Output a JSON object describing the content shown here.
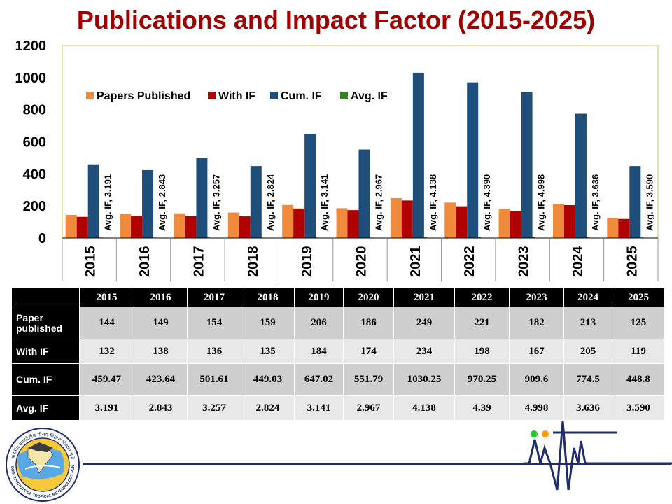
{
  "title": "Publications and Impact Factor (2015-2025)",
  "chart_data": {
    "type": "bar",
    "categories": [
      "2015",
      "2016",
      "2017",
      "2018",
      "2019",
      "2020",
      "2021",
      "2022",
      "2023",
      "2024",
      "2025"
    ],
    "series": [
      {
        "name": "Papers Published",
        "color": "#f08a3c",
        "values": [
          144,
          149,
          154,
          159,
          206,
          186,
          249,
          221,
          182,
          213,
          125
        ]
      },
      {
        "name": "With IF",
        "color": "#b00000",
        "values": [
          132,
          138,
          136,
          135,
          184,
          174,
          234,
          198,
          167,
          205,
          119
        ]
      },
      {
        "name": "Cum. IF",
        "color": "#1f4e7a",
        "values": [
          459.47,
          423.64,
          501.61,
          449.03,
          647.02,
          551.79,
          1030.25,
          970.25,
          909.6,
          774.5,
          448.8
        ]
      },
      {
        "name": "Avg. IF",
        "color": "#3a7d2a",
        "values": [
          3.191,
          2.843,
          3.257,
          2.824,
          3.141,
          2.967,
          4.138,
          4.39,
          4.998,
          3.636,
          3.59
        ]
      }
    ],
    "data_labels": [
      "Avg. IF, 3.191",
      "Avg. IF, 2.843",
      "Avg. IF, 3.257",
      "Avg. IF, 2.824",
      "Avg. IF, 3.141",
      "Avg. IF, 2.967",
      "Avg. IF, 4.138",
      "Avg. IF, 4.390",
      "Avg. IF, 4.998",
      "Avg. IF, 3.636",
      "Avg. IF, 3.590"
    ],
    "yticks": [
      "0",
      "200",
      "400",
      "600",
      "800",
      "1000",
      "1200"
    ],
    "ylim": [
      0,
      1200
    ],
    "grid": false,
    "legend_position": "top-left"
  },
  "table": {
    "years": [
      "2015",
      "2016",
      "2017",
      "2018",
      "2019",
      "2020",
      "2021",
      "2022",
      "2023",
      "2024",
      "2025"
    ],
    "rows": [
      {
        "label": "Paper published",
        "values": [
          "144",
          "149",
          "154",
          "159",
          "206",
          "186",
          "249",
          "221",
          "182",
          "213",
          "125"
        ]
      },
      {
        "label": "With IF",
        "values": [
          "132",
          "138",
          "136",
          "135",
          "184",
          "174",
          "234",
          "198",
          "167",
          "205",
          "119"
        ]
      },
      {
        "label": "Cum. IF",
        "values": [
          "459.47",
          "423.64",
          "501.61",
          "449.03",
          "647.02",
          "551.79",
          "1030.25",
          "970.25",
          "909.6",
          "774.5",
          "448.8"
        ]
      },
      {
        "label": "Avg. IF",
        "values": [
          "3.191",
          "2.843",
          "3.257",
          "2.824",
          "3.141",
          "2.967",
          "4.138",
          "4.39",
          "4.998",
          "3.636",
          "3.590"
        ]
      }
    ]
  },
  "logo": {
    "top_text": "भारतीय उष्णदेशीय मौसम विज्ञान संस्थान पुणे",
    "bottom_text": "INDIAN INSTITUTE OF TROPICAL METEOROLOGY PUNE"
  },
  "colors": {
    "title": "#a00000",
    "accent_line": "#1f2d6a",
    "dot_green": "#22cc22",
    "dot_orange": "#ff9900"
  }
}
